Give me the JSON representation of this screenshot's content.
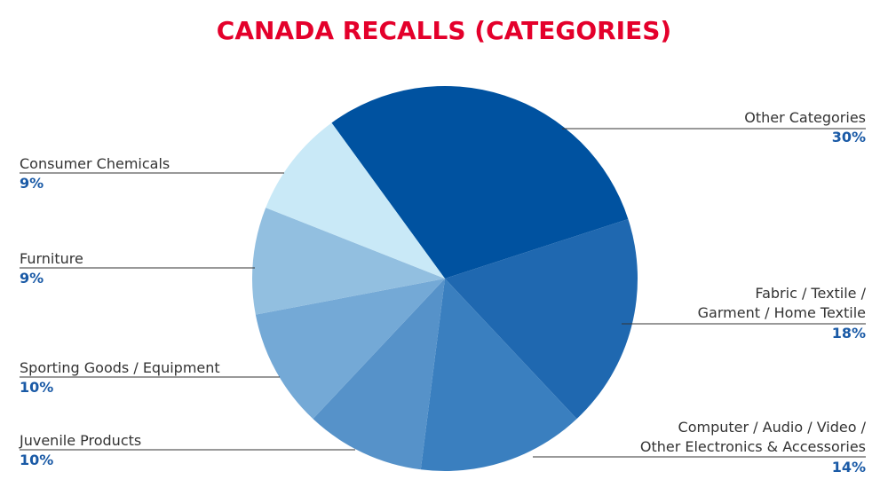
{
  "chart_data": {
    "type": "pie",
    "title": "CANADA RECALLS (CATEGORIES)",
    "categories": [
      [
        "Other Categories"
      ],
      [
        "Fabric / Textile /",
        "Garment / Home Textile"
      ],
      [
        "Computer / Audio / Video /",
        "Other Electronics & Accessories"
      ],
      [
        "Juvenile Products"
      ],
      [
        "Sporting Goods / Equipment"
      ],
      [
        "Furniture"
      ],
      [
        "Consumer Chemicals"
      ]
    ],
    "values": [
      30,
      18,
      14,
      10,
      10,
      9,
      9
    ],
    "value_labels": [
      "30%",
      "18%",
      "14%",
      "10%",
      "10%",
      "9%",
      "9%"
    ],
    "colors": [
      "#0052a0",
      "#1f68b0",
      "#3a7fbf",
      "#5692c9",
      "#74a9d6",
      "#92bfe0",
      "#c9e9f7"
    ]
  }
}
